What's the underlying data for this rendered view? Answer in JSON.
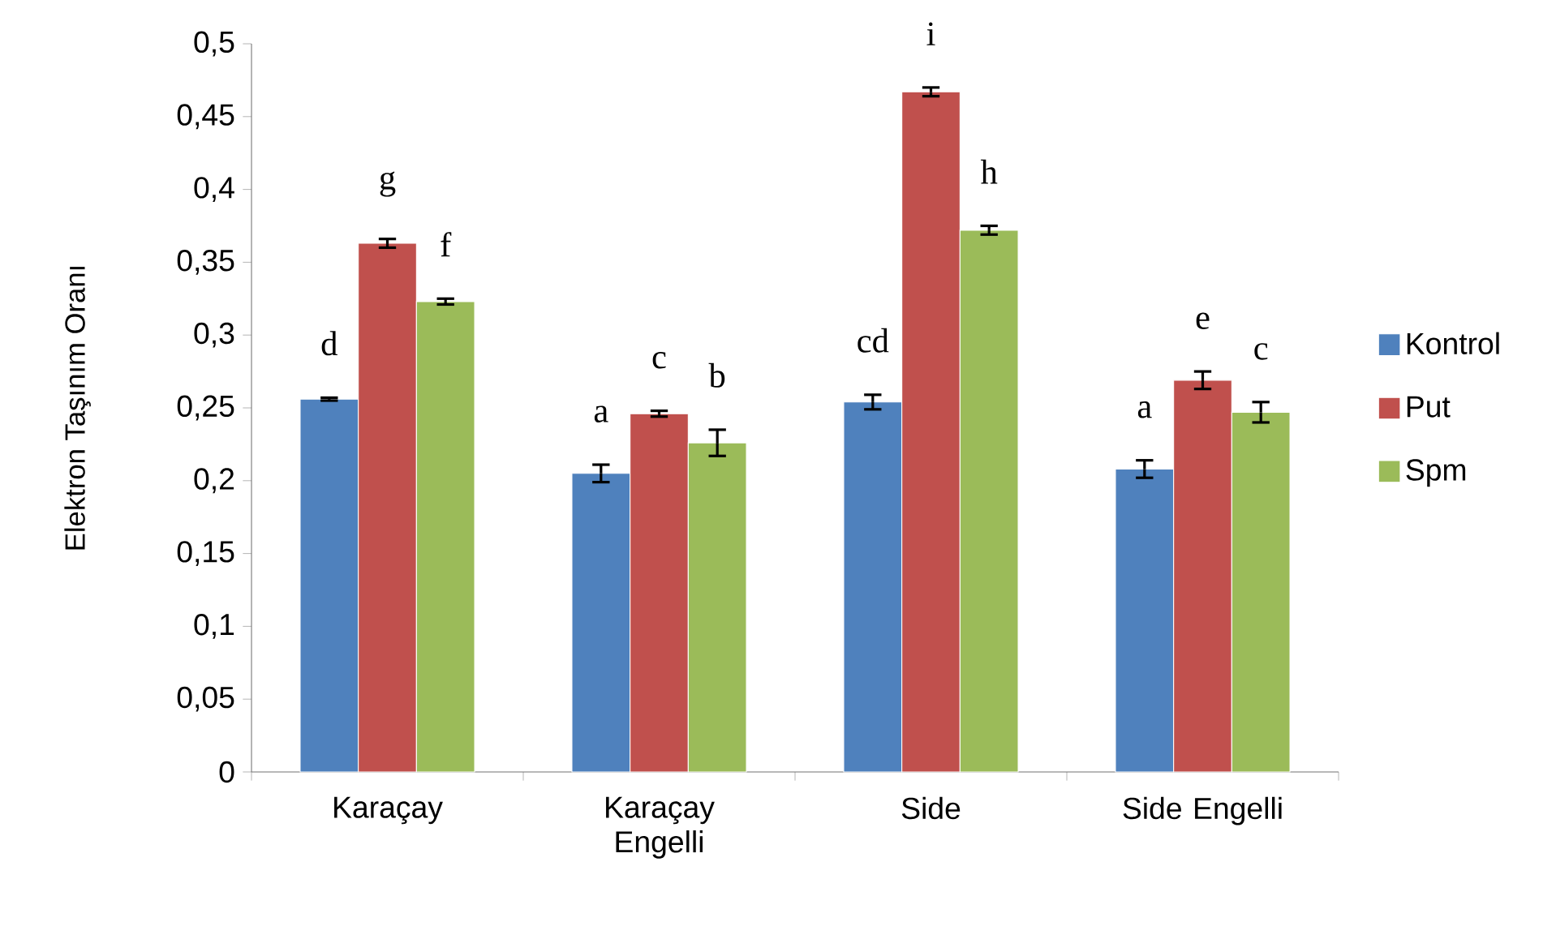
{
  "chart_data": {
    "type": "bar",
    "ylabel": "Elektron Taşınım Oranı",
    "categories": [
      "Karaçay",
      "Karaçay Engelli",
      "Side",
      "Side Engelli"
    ],
    "series": [
      {
        "name": "Kontrol",
        "color": "#4f81bd",
        "values": [
          0.256,
          0.205,
          0.254,
          0.208
        ],
        "errors": [
          0.001,
          0.006,
          0.005,
          0.006
        ],
        "value_labels": [
          "d",
          "a",
          "cd",
          "a"
        ]
      },
      {
        "name": "Put",
        "color": "#c0504d",
        "values": [
          0.363,
          0.246,
          0.467,
          0.269
        ],
        "errors": [
          0.003,
          0.002,
          0.003,
          0.006
        ],
        "value_labels": [
          "g",
          "c",
          "i",
          "e"
        ]
      },
      {
        "name": "Spm",
        "color": "#9bbb59",
        "values": [
          0.323,
          0.226,
          0.372,
          0.247
        ],
        "errors": [
          0.002,
          0.009,
          0.003,
          0.007
        ],
        "value_labels": [
          "f",
          "b",
          "h",
          "c"
        ]
      }
    ],
    "ylim": [
      0,
      0.5
    ],
    "yticks": [
      0,
      {
        "value": 0.05,
        "label": "0,05"
      },
      {
        "value": 0.1,
        "label": "0,1"
      },
      {
        "value": 0.15,
        "label": "0,15"
      },
      {
        "value": 0.2,
        "label": "0,2"
      },
      {
        "value": 0.25,
        "label": "0,25"
      },
      {
        "value": 0.3,
        "label": "0,3"
      },
      {
        "value": 0.35,
        "label": "0,35"
      },
      {
        "value": 0.4,
        "label": "0,4"
      },
      {
        "value": 0.45,
        "label": "0,45"
      },
      {
        "value": 0.5,
        "label": "0,5"
      }
    ],
    "grid": false,
    "legend": "right"
  }
}
